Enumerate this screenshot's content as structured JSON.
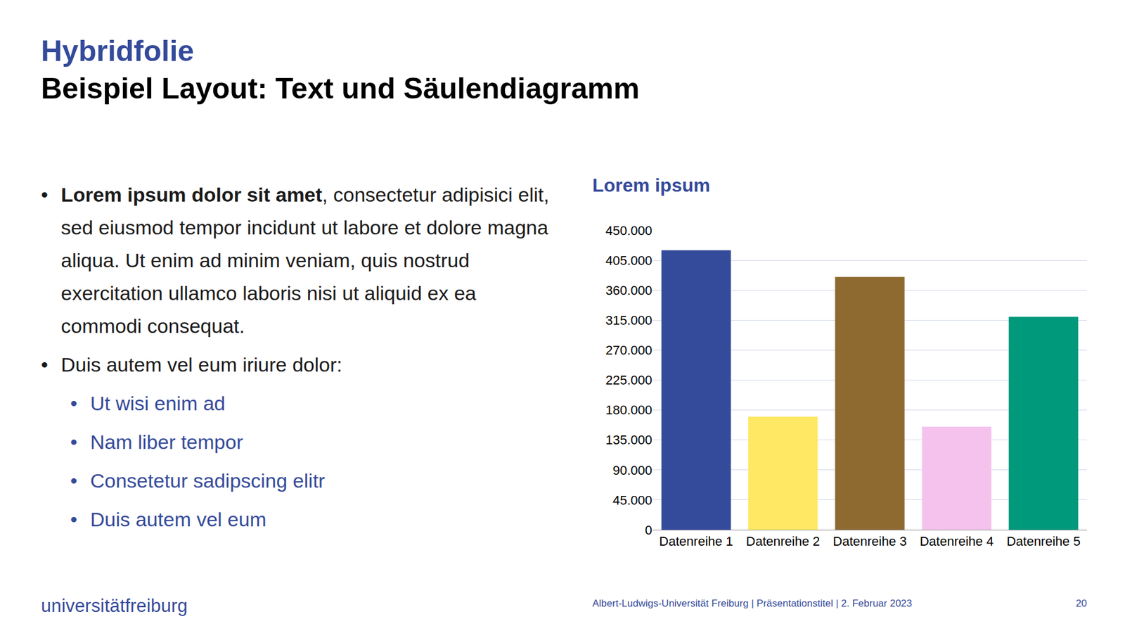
{
  "slide": {
    "kicker": "Hybridfolie",
    "title": "Beispiel Layout: Text und Säulendiagramm",
    "bullets": [
      {
        "bold": "Lorem ipsum dolor sit amet",
        "text": ", consectetur adipisici elit, sed eiusmod tempor incidunt ut labore et dolore magna aliqua. Ut enim ad minim veniam, quis nostrud exercitation ullamco laboris nisi ut aliquid ex ea commodi consequat."
      },
      {
        "text": "Duis autem vel eum iriure dolor:",
        "sub": [
          "Ut wisi enim ad",
          "Nam liber tempor",
          "Consetetur sadipscing elitr",
          "Duis autem vel eum"
        ]
      }
    ],
    "logo": "universitätfreiburg",
    "footer": "Albert-Ludwigs-Universität Freiburg | Präsentationstitel | 2. Februar 2023",
    "page": "20"
  },
  "chart_data": {
    "type": "bar",
    "title": "Lorem ipsum",
    "categories": [
      "Datenreihe 1",
      "Datenreihe 2",
      "Datenreihe 3",
      "Datenreihe 4",
      "Datenreihe 5"
    ],
    "values": [
      420000,
      170000,
      380000,
      155000,
      320000
    ],
    "colors": [
      "#344a9a",
      "#ffe863",
      "#8e6a31",
      "#f5c2ee",
      "#00997b"
    ],
    "ylim": [
      0,
      450000
    ],
    "yticks": [
      0,
      {
        "value": 45000,
        "label": "45.000"
      },
      {
        "value": 90000,
        "label": "90.000"
      },
      {
        "value": 135000,
        "label": "135.000"
      },
      {
        "value": 180000,
        "label": "180.000"
      },
      {
        "value": 225000,
        "label": "225.000"
      },
      {
        "value": 270000,
        "label": "270.000"
      },
      {
        "value": 315000,
        "label": "315.000"
      },
      {
        "value": 360000,
        "label": "360.000"
      },
      {
        "value": 405000,
        "label": "405.000"
      },
      {
        "value": 450000,
        "label": "450.000"
      }
    ],
    "grid": true
  }
}
